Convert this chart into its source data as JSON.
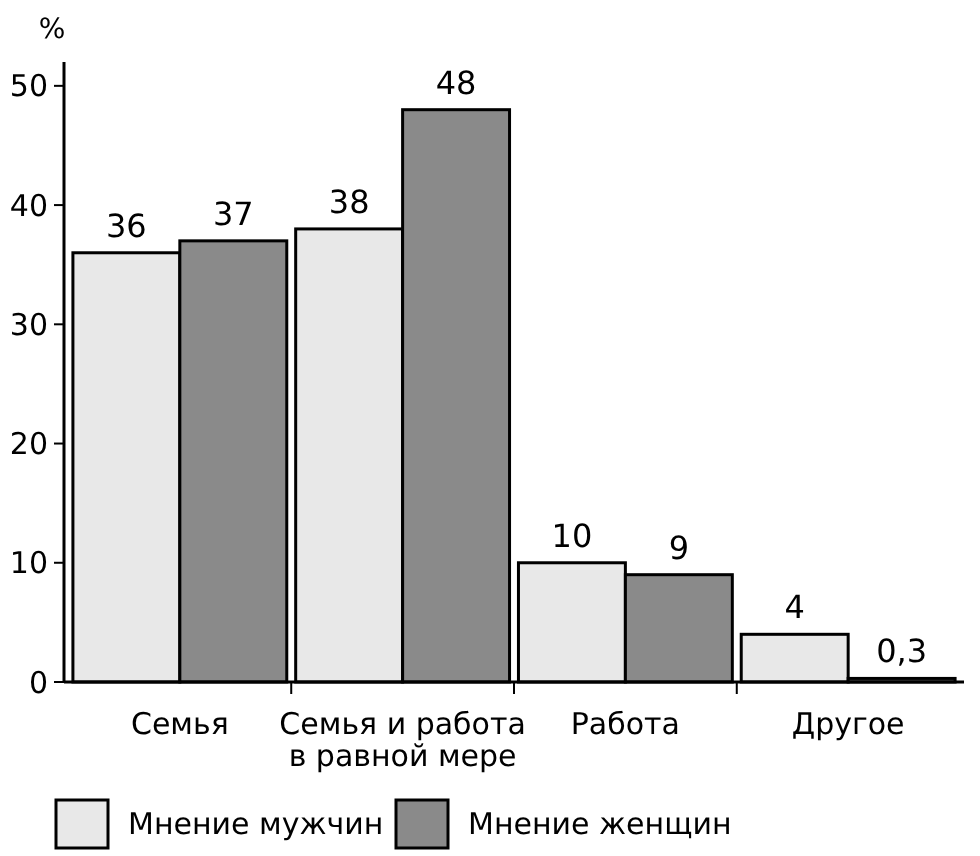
{
  "chart_data": {
    "type": "bar",
    "ylabel": "%",
    "categories": [
      "Семья",
      "Семья и работа\nв равной мере",
      "Работа",
      "Другое"
    ],
    "series": [
      {
        "name": "Мнение мужчин",
        "color": "#e8e8e8",
        "values": [
          36,
          38,
          10,
          4
        ],
        "value_labels": [
          "36",
          "38",
          "10",
          "4"
        ]
      },
      {
        "name": "Мнение женщин",
        "color": "#8a8a8a",
        "values": [
          37,
          48,
          9,
          0.3
        ],
        "value_labels": [
          "37",
          "48",
          "9",
          "0,3"
        ]
      }
    ],
    "ylim": [
      0,
      52
    ],
    "yticks": [
      0,
      10,
      20,
      30,
      40,
      50
    ],
    "grid": false,
    "legend": "bottom left"
  }
}
